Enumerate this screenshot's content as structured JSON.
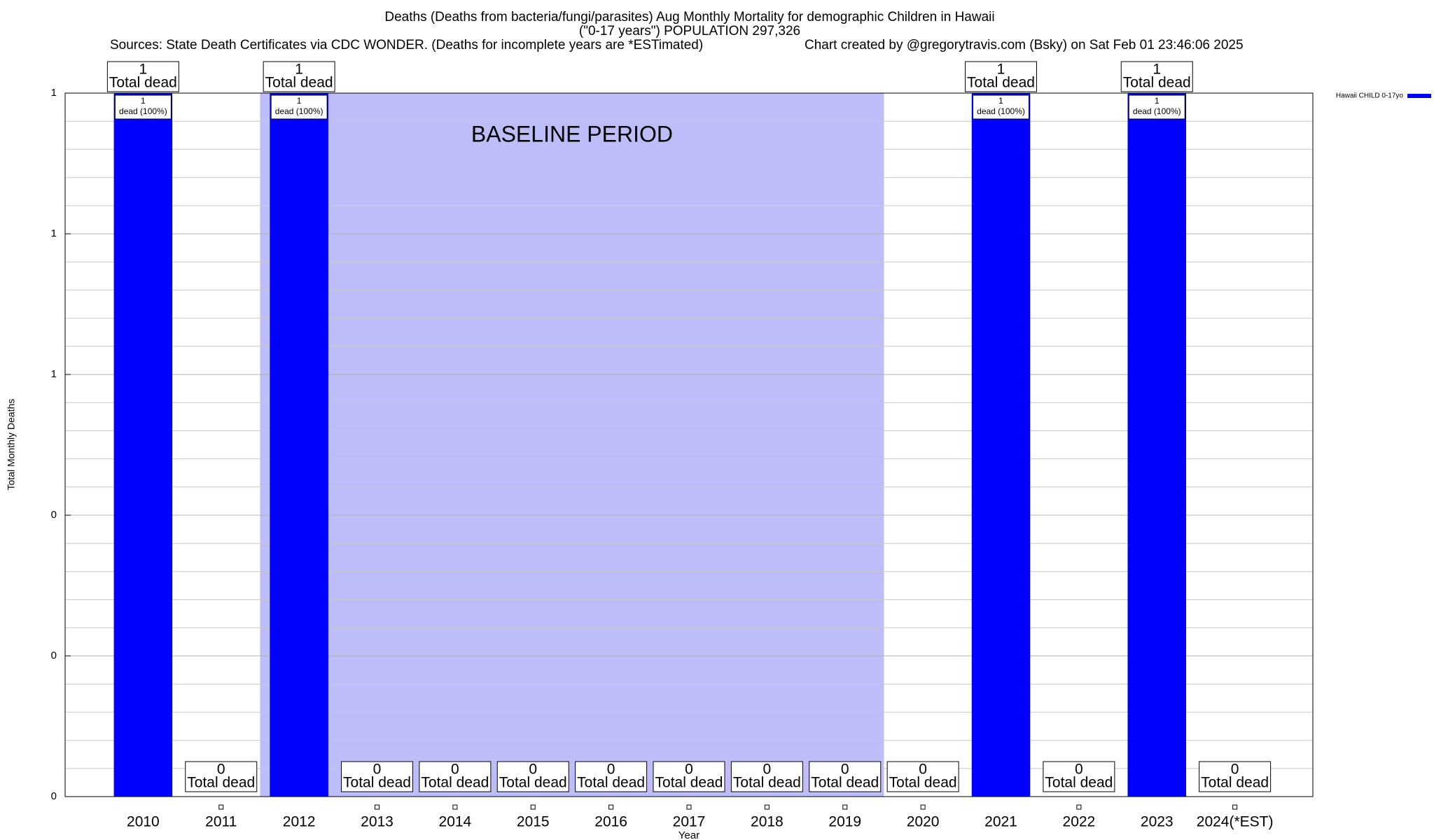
{
  "chart_data": {
    "type": "bar",
    "title": "Deaths (Deaths from bacteria/fungi/parasites) Aug Monthly Mortality for demographic Children in Hawaii",
    "subtitle": "(\"0-17 years\") POPULATION 297,326",
    "sources": "Sources: State Death Certificates via CDC WONDER. (Deaths for incomplete years are *ESTimated)",
    "credit": "Chart created by @gregorytravis.com (Bsky) on Sat Feb 01 23:46:06 2025",
    "x_label": "Year",
    "y_label": "Total Monthly Deaths",
    "categories": [
      "2010",
      "2011",
      "2012",
      "2013",
      "2014",
      "2015",
      "2016",
      "2017",
      "2018",
      "2019",
      "2020",
      "2021",
      "2022",
      "2023",
      "2024(*EST)"
    ],
    "series": [
      {
        "name": "Hawaii CHILD 0-17yo",
        "color": "#0000ff",
        "values": [
          1,
          0,
          1,
          0,
          0,
          0,
          0,
          0,
          0,
          0,
          0,
          1,
          0,
          1,
          0
        ]
      }
    ],
    "total_label": "Total dead",
    "bar_label": "dead (100%)",
    "baseline": {
      "label": "BASELINE PERIOD",
      "from": "2012",
      "to": "2019",
      "color": "#bdbdfa"
    },
    "ylim": [
      0,
      1
    ],
    "yticks": [
      0,
      {
        "value": 0.2,
        "label": "0"
      },
      {
        "value": 0.4,
        "label": "0"
      },
      {
        "value": 0.6,
        "label": "1"
      },
      {
        "value": 0.8,
        "label": "1"
      },
      1
    ],
    "yminorticks": [
      0.04,
      0.08,
      0.12,
      0.16,
      0.24,
      0.28,
      0.32,
      0.36,
      0.44,
      0.48,
      0.52,
      0.56,
      0.64,
      0.68,
      0.72,
      0.76,
      0.84,
      0.88,
      0.92,
      0.96
    ],
    "grid": true,
    "legend": "top-right"
  }
}
